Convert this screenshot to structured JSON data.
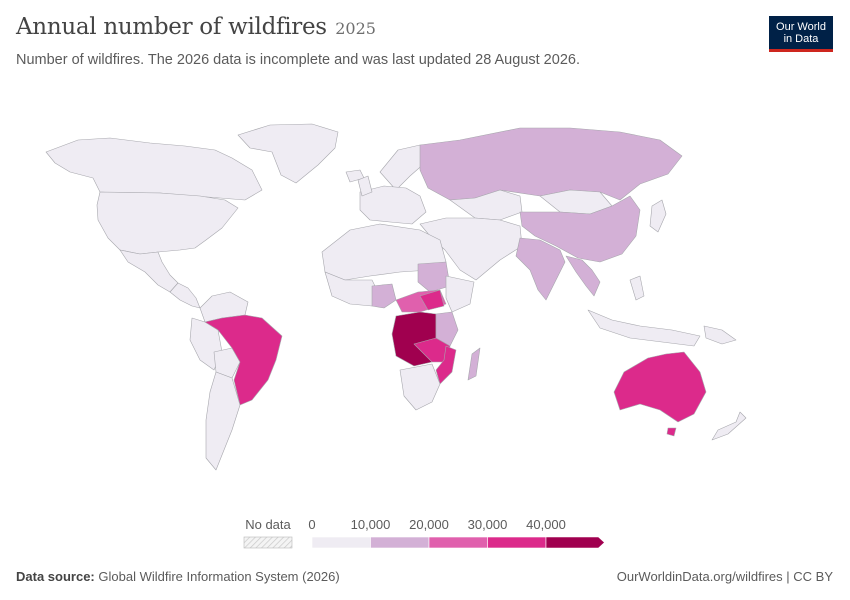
{
  "header": {
    "title": "Annual number of wildfires",
    "year": "2025",
    "subtitle": "Number of wildfires. The 2026 data is incomplete and was last updated 28 August 2026."
  },
  "logo": {
    "line1": "Our World",
    "line2": "in Data"
  },
  "legend": {
    "no_data_label": "No data",
    "ticks": [
      "0",
      "10,000",
      "20,000",
      "30,000",
      "40,000"
    ],
    "colors": [
      "#efecf3",
      "#d3b0d6",
      "#e060ad",
      "#dc2a8b",
      "#a0004f"
    ]
  },
  "colors": {
    "base": "#efecf3",
    "bin1": "#d3b0d6",
    "bin2": "#e060ad",
    "bin3": "#dc2a8b",
    "bin4": "#a0004f",
    "border": "#a7a7ad"
  },
  "footer": {
    "source_label": "Data source:",
    "source_text": "Global Wildfire Information System (2026)",
    "link": "OurWorldinData.org/wildfires | CC BY"
  }
}
